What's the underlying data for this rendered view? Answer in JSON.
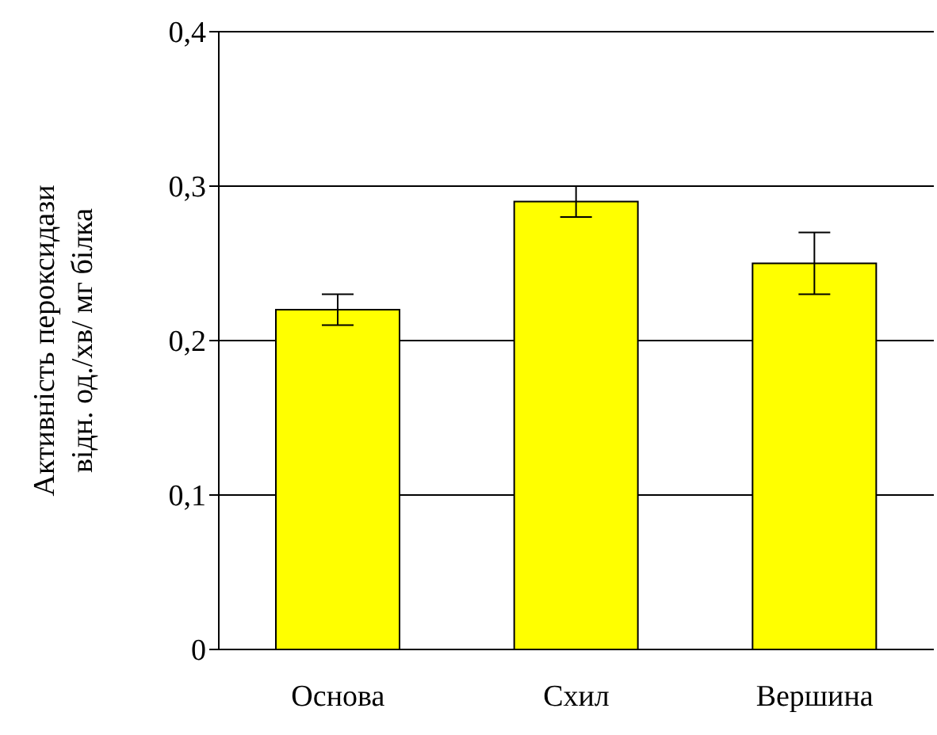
{
  "chart_data": {
    "type": "bar",
    "ylabel": "Активність пероксидази\nвідн. од./хв/ мг білка",
    "categories": [
      "Основа",
      "Схил",
      "Вершина"
    ],
    "values": [
      0.22,
      0.29,
      0.25
    ],
    "errors": [
      0.01,
      0.01,
      0.02
    ],
    "color": "#ffff00",
    "ylim": [
      0,
      0.4
    ],
    "yticks": [
      {
        "value": 0,
        "label": "0"
      },
      {
        "value": 0.1,
        "label": "0,1"
      },
      {
        "value": 0.2,
        "label": "0,2"
      },
      {
        "value": 0.3,
        "label": "0,3"
      },
      {
        "value": 0.4,
        "label": "0,4"
      }
    ],
    "grid": "y"
  }
}
